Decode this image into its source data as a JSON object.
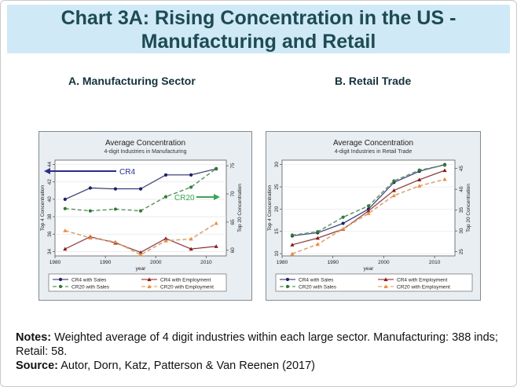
{
  "title": "Chart 3A: Rising Concentration in the US - Manufacturing and Retail",
  "notes": {
    "notes_label": "Notes:",
    "notes_text": "Weighted average of 4 digit industries within each large sector. Manufacturing: 388 inds; Retail: 58.",
    "source_label": "Source:",
    "source_text": "Autor, Dorn, Katz, Patterson & Van Reenen (2017)"
  },
  "chart_data": [
    {
      "type": "line",
      "subtitle_heading": "A. Manufacturing Sector",
      "title": "Average Concentration",
      "subtitle": "4-digit Industries in Manufacturing",
      "xlabel": "year",
      "ylabel_left": "Top 4 Concentration",
      "ylabel_right": "Top 20 Concentration",
      "xlim": [
        1980,
        2014
      ],
      "xticks": [
        1980,
        1990,
        2000,
        2010
      ],
      "ylim_left": [
        33.5,
        44.5
      ],
      "yticks_left": [
        34,
        36,
        38,
        40,
        42,
        44
      ],
      "ylim_right": [
        59,
        76
      ],
      "yticks_right": [
        60,
        65,
        70,
        75
      ],
      "x": [
        1982,
        1987,
        1992,
        1997,
        2002,
        2007,
        2012
      ],
      "series": [
        {
          "name": "CR4 with Sales",
          "axis": "left",
          "color": "#1b1f6b",
          "dash": "",
          "marker": "circle",
          "values": [
            40.0,
            41.3,
            41.2,
            41.2,
            42.8,
            42.8,
            43.5
          ]
        },
        {
          "name": "CR4 with Employment",
          "axis": "left",
          "color": "#8a1b1b",
          "dash": "",
          "marker": "triangle",
          "values": [
            34.3,
            35.7,
            35.0,
            33.9,
            35.5,
            34.3,
            34.6
          ]
        },
        {
          "name": "CR20 with Sales",
          "axis": "right",
          "color": "#2e7d32",
          "dash": "5,3",
          "marker": "circle",
          "values": [
            67.4,
            67.0,
            67.3,
            67.0,
            69.5,
            71.2,
            74.5
          ]
        },
        {
          "name": "CR20 with Employment",
          "axis": "right",
          "color": "#ef8c3b",
          "dash": "5,3",
          "marker": "triangle",
          "values": [
            63.5,
            62.2,
            61.5,
            59.2,
            61.7,
            62.0,
            64.8
          ]
        }
      ],
      "annotations": [
        {
          "text": "CR4",
          "arrow": "left",
          "color": "#2b2c8c"
        },
        {
          "text": "CR20",
          "arrow": "right",
          "color": "#39a557"
        }
      ],
      "legend": "bottom"
    },
    {
      "type": "line",
      "subtitle_heading": "B. Retail Trade",
      "title": "Average Concentration",
      "subtitle": "4-digit Industries in Retail Trade",
      "xlabel": "year",
      "ylabel_left": "Top 4 Concentration",
      "ylabel_right": "Top 20 Concentration",
      "xlim": [
        1980,
        2014
      ],
      "xticks": [
        1980,
        1990,
        2000,
        2010
      ],
      "ylim_left": [
        9.5,
        31
      ],
      "yticks_left": [
        10,
        15,
        20,
        25,
        30
      ],
      "ylim_right": [
        24,
        47
      ],
      "yticks_right": [
        25,
        30,
        35,
        40,
        45
      ],
      "x": [
        1982,
        1987,
        1992,
        1997,
        2002,
        2007,
        2012
      ],
      "series": [
        {
          "name": "CR4 with Sales",
          "axis": "left",
          "color": "#1b1f6b",
          "dash": "",
          "marker": "circle",
          "values": [
            14.0,
            14.7,
            16.8,
            20.0,
            26.0,
            28.5,
            30.0
          ]
        },
        {
          "name": "CR4 with Employment",
          "axis": "left",
          "color": "#8a1b1b",
          "dash": "",
          "marker": "triangle",
          "values": [
            12.0,
            13.5,
            15.5,
            19.6,
            24.2,
            26.6,
            28.7
          ]
        },
        {
          "name": "CR20 with Sales",
          "axis": "right",
          "color": "#2e7d32",
          "dash": "5,3",
          "marker": "circle",
          "values": [
            29.0,
            29.8,
            33.3,
            36.0,
            42.0,
            44.6,
            45.8
          ]
        },
        {
          "name": "CR20 with Employment",
          "axis": "right",
          "color": "#ef8c3b",
          "dash": "5,3",
          "marker": "triangle",
          "values": [
            24.5,
            26.8,
            30.5,
            34.2,
            38.5,
            40.8,
            42.4
          ]
        }
      ],
      "legend": "bottom"
    }
  ]
}
